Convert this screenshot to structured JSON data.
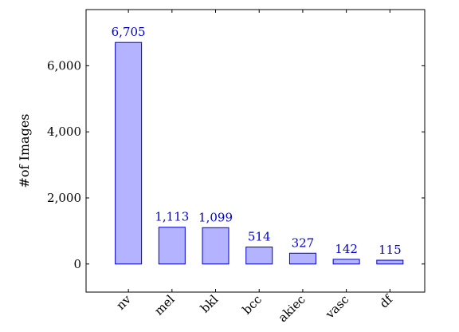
{
  "chart_data": {
    "type": "bar",
    "title": "",
    "xlabel": "",
    "ylabel": "#of Images",
    "categories": [
      "nv",
      "mel",
      "bkl",
      "bcc",
      "akiec",
      "vasc",
      "df"
    ],
    "values": [
      6705,
      1113,
      1099,
      514,
      327,
      142,
      115
    ],
    "value_labels": [
      "6,705",
      "1,113",
      "1,099",
      "514",
      "327",
      "142",
      "115"
    ],
    "ylim": [
      -850,
      7700
    ],
    "yticks": [
      0,
      2000,
      4000,
      6000
    ],
    "ytick_labels": [
      "0",
      "2,000",
      "4,000",
      "6,000"
    ],
    "grid": false,
    "legend": "none",
    "colors": {
      "bar_fill": "#b3b3ff",
      "bar_stroke": "#0000cc",
      "label": "#0000cc"
    }
  }
}
